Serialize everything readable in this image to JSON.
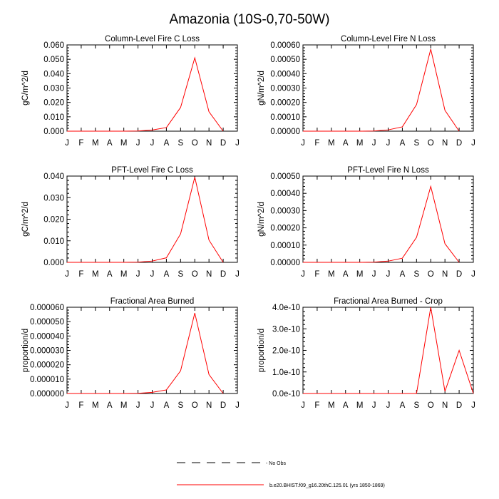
{
  "figure_title": "Amazonia (10S-0,70-50W)",
  "legend": {
    "obs_label": "- No Obs",
    "model_label": "b.e20.BHIST.f09_g16.20thC.125.01 (yrs 1850-1869)",
    "model_color": "#ff0000",
    "obs_color": "#000000"
  },
  "chart_data": [
    {
      "type": "line",
      "title": "Column-Level Fire C Loss",
      "ylabel": "gC/m^2/d",
      "x": [
        1,
        2,
        3,
        4,
        5,
        6,
        7,
        8,
        9,
        10,
        11,
        12
      ],
      "xticks": [
        "J",
        "F",
        "M",
        "A",
        "M",
        "J",
        "J",
        "A",
        "S",
        "O",
        "N",
        "D",
        "J"
      ],
      "ylim": [
        0,
        0.06
      ],
      "yticks": [
        0,
        0.01,
        0.02,
        0.03,
        0.04,
        0.05,
        0.06
      ],
      "ytick_labels": [
        "0.000",
        "0.010",
        "0.020",
        "0.030",
        "0.040",
        "0.050",
        "0.060"
      ],
      "series": [
        {
          "values": [
            0,
            0,
            0,
            0,
            0,
            0.0001,
            0.0008,
            0.0025,
            0.0165,
            0.051,
            0.0135,
            0
          ]
        }
      ]
    },
    {
      "type": "line",
      "title": "Column-Level Fire N Loss",
      "ylabel": "gN/m^2/d",
      "x": [
        1,
        2,
        3,
        4,
        5,
        6,
        7,
        8,
        9,
        10,
        11,
        12
      ],
      "xticks": [
        "J",
        "F",
        "M",
        "A",
        "M",
        "J",
        "J",
        "A",
        "S",
        "O",
        "N",
        "D",
        "J"
      ],
      "ylim": [
        0,
        0.0006
      ],
      "yticks": [
        0,
        0.0001,
        0.0002,
        0.0003,
        0.0004,
        0.0005,
        0.0006
      ],
      "ytick_labels": [
        "0.00000",
        "0.00010",
        "0.00020",
        "0.00030",
        "0.00040",
        "0.00050",
        "0.00060"
      ],
      "series": [
        {
          "values": [
            0,
            0,
            0,
            0,
            0,
            1e-06,
            9e-06,
            3e-05,
            0.000185,
            0.00057,
            0.000145,
            0
          ]
        }
      ]
    },
    {
      "type": "line",
      "title": "PFT-Level Fire C Loss",
      "ylabel": "gC/m^2/d",
      "x": [
        1,
        2,
        3,
        4,
        5,
        6,
        7,
        8,
        9,
        10,
        11,
        12
      ],
      "xticks": [
        "J",
        "F",
        "M",
        "A",
        "M",
        "J",
        "J",
        "A",
        "S",
        "O",
        "N",
        "D",
        "J"
      ],
      "ylim": [
        0,
        0.04
      ],
      "yticks": [
        0,
        0.01,
        0.02,
        0.03,
        0.04
      ],
      "ytick_labels": [
        "0.000",
        "0.010",
        "0.020",
        "0.030",
        "0.040"
      ],
      "series": [
        {
          "values": [
            0,
            0,
            0,
            0,
            0,
            0.0001,
            0.0006,
            0.0021,
            0.0132,
            0.0395,
            0.0103,
            0
          ]
        }
      ]
    },
    {
      "type": "line",
      "title": "PFT-Level Fire N Loss",
      "ylabel": "gN/m^2/d",
      "x": [
        1,
        2,
        3,
        4,
        5,
        6,
        7,
        8,
        9,
        10,
        11,
        12
      ],
      "xticks": [
        "J",
        "F",
        "M",
        "A",
        "M",
        "J",
        "J",
        "A",
        "S",
        "O",
        "N",
        "D",
        "J"
      ],
      "ylim": [
        0,
        0.0005
      ],
      "yticks": [
        0,
        0.0001,
        0.0002,
        0.0003,
        0.0004,
        0.0005
      ],
      "ytick_labels": [
        "0.00000",
        "0.00010",
        "0.00020",
        "0.00030",
        "0.00040",
        "0.00050"
      ],
      "series": [
        {
          "values": [
            0,
            0,
            0,
            0,
            0,
            1e-06,
            7e-06,
            2.4e-05,
            0.000145,
            0.00044,
            0.000108,
            0
          ]
        }
      ]
    },
    {
      "type": "line",
      "title": "Fractional Area Burned",
      "ylabel": "proportion/d",
      "x": [
        1,
        2,
        3,
        4,
        5,
        6,
        7,
        8,
        9,
        10,
        11,
        12
      ],
      "xticks": [
        "J",
        "F",
        "M",
        "A",
        "M",
        "J",
        "J",
        "A",
        "S",
        "O",
        "N",
        "D",
        "J"
      ],
      "ylim": [
        0,
        6e-05
      ],
      "yticks": [
        0,
        1e-05,
        2e-05,
        3e-05,
        4e-05,
        5e-05,
        6e-05
      ],
      "ytick_labels": [
        "0.000000",
        "0.000010",
        "0.000020",
        "0.000030",
        "0.000040",
        "0.000050",
        "0.000060"
      ],
      "series": [
        {
          "values": [
            0,
            0,
            0,
            0,
            0,
            1e-07,
            8e-07,
            2.5e-06,
            1.58e-05,
            5.6e-05,
            1.32e-05,
            0
          ]
        }
      ]
    },
    {
      "type": "line",
      "title": "Fractional Area Burned - Crop",
      "ylabel": "proportion/d",
      "x": [
        1,
        2,
        3,
        4,
        5,
        6,
        7,
        8,
        9,
        10,
        11,
        12,
        13
      ],
      "xticks": [
        "J",
        "F",
        "M",
        "A",
        "M",
        "J",
        "J",
        "A",
        "S",
        "O",
        "N",
        "D",
        "J"
      ],
      "ylim": [
        0,
        4e-10
      ],
      "yticks": [
        0,
        1e-10,
        2e-10,
        3e-10,
        4e-10
      ],
      "ytick_labels": [
        "0.0e-10",
        "1.0e-10",
        "2.0e-10",
        "3.0e-10",
        "4.0e-10"
      ],
      "series": [
        {
          "values": [
            0,
            0,
            0,
            0,
            0,
            0,
            0,
            0,
            0,
            4e-10,
            1e-11,
            2e-10,
            0
          ]
        }
      ]
    }
  ]
}
